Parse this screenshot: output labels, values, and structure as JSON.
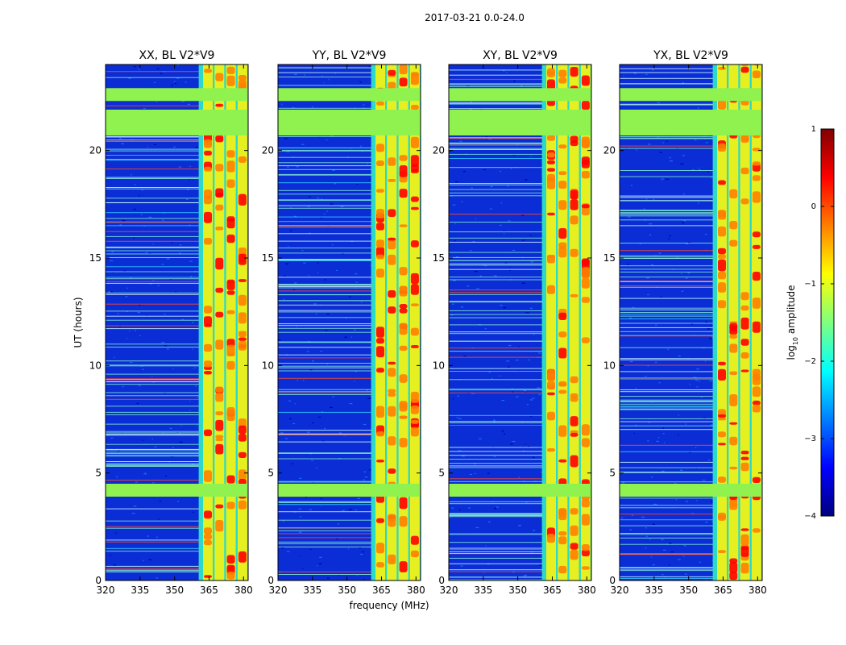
{
  "figure_title": "2017-03-21 0.0-24.0",
  "colors": {
    "jet": [
      "#00007f",
      "#0000ff",
      "#007fff",
      "#00ffff",
      "#7fff7f",
      "#ffff00",
      "#ff7f00",
      "#ff0000",
      "#7f0000"
    ],
    "background_blue": "#0b2dd6",
    "band_green": "#8ff24f",
    "rfi_red": "#ff4a2a",
    "rfi_yellow": "#e6f020"
  },
  "chart_data": [
    {
      "type": "heatmap",
      "title": "XX, BL V2*V9",
      "ylabel": "UT (hours)",
      "xlim": [
        320,
        382
      ],
      "ylim": [
        0,
        24
      ],
      "xticks": [
        "320",
        "335",
        "350",
        "365",
        "380"
      ],
      "yticks": [
        "0",
        "5",
        "10",
        "15",
        "20"
      ],
      "band_mhz": [
        360.5,
        382
      ],
      "strong_channels_mhz": [
        364.5,
        369.5,
        374.5,
        379.5
      ],
      "flagged_hours": [
        [
          3.9,
          4.5
        ],
        [
          20.7,
          21.9
        ],
        [
          22.3,
          22.9
        ]
      ]
    },
    {
      "type": "heatmap",
      "title": "YY, BL V2*V9",
      "xlabel": "frequency (MHz)",
      "xlim": [
        320,
        382
      ],
      "ylim": [
        0,
        24
      ],
      "xticks": [
        "320",
        "335",
        "350",
        "365",
        "380"
      ],
      "yticks": [
        "0",
        "5",
        "10",
        "15",
        "20"
      ],
      "band_mhz": [
        360.5,
        382
      ],
      "strong_channels_mhz": [
        364.5,
        369.5,
        374.5,
        379.5
      ],
      "flagged_hours": [
        [
          3.9,
          4.5
        ],
        [
          20.7,
          21.9
        ],
        [
          22.3,
          22.9
        ]
      ]
    },
    {
      "type": "heatmap",
      "title": "XY, BL V2*V9",
      "xlim": [
        320,
        382
      ],
      "ylim": [
        0,
        24
      ],
      "xticks": [
        "320",
        "335",
        "350",
        "365",
        "380"
      ],
      "yticks": [
        "0",
        "5",
        "10",
        "15",
        "20"
      ],
      "band_mhz": [
        360.5,
        382
      ],
      "strong_channels_mhz": [
        364.5,
        369.5,
        374.5,
        379.5
      ],
      "flagged_hours": [
        [
          3.9,
          4.5
        ],
        [
          20.7,
          21.9
        ],
        [
          22.3,
          22.9
        ]
      ]
    },
    {
      "type": "heatmap",
      "title": "YX, BL V2*V9",
      "xlim": [
        320,
        382
      ],
      "ylim": [
        0,
        24
      ],
      "xticks": [
        "320",
        "335",
        "350",
        "365",
        "380"
      ],
      "yticks": [
        "0",
        "5",
        "10",
        "15",
        "20"
      ],
      "band_mhz": [
        360.5,
        382
      ],
      "strong_channels_mhz": [
        364.5,
        369.5,
        374.5,
        379.5
      ],
      "flagged_hours": [
        [
          3.9,
          4.5
        ],
        [
          20.7,
          21.9
        ],
        [
          22.3,
          22.9
        ]
      ]
    }
  ],
  "colorbar": {
    "label_prefix": "log",
    "label_subscript": "10",
    "label_suffix": " amplitude",
    "range": [
      -4,
      1
    ],
    "ticks": [
      "1",
      "0",
      "−1",
      "−2",
      "−3",
      "−4"
    ],
    "tick_values": [
      1,
      0,
      -1,
      -2,
      -3,
      -4
    ]
  }
}
